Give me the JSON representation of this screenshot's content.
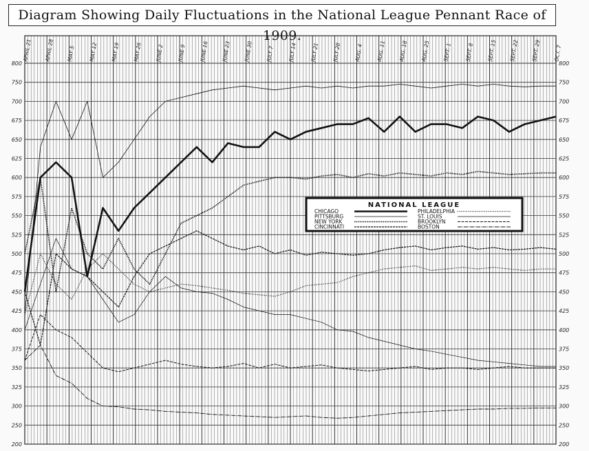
{
  "chart_data": {
    "type": "line",
    "title": "Diagram Showing Daily Fluctuations in the National League Pennant Race of 1909.",
    "date_labels": [
      "APRIL 21",
      "APRIL 28",
      "MAY 5",
      "MAY 12",
      "MAY 19",
      "MAY 26",
      "JUNE 2",
      "JUNE 9",
      "JUNE 16",
      "JUNE 23",
      "JUNE 30",
      "JULY 7",
      "JULY 14",
      "JULY 21",
      "JULY 28",
      "AUG. 4",
      "AUG. 11",
      "AUG. 18",
      "AUG. 25",
      "SEPT. 1",
      "SEPT. 8",
      "SEPT. 15",
      "SEPT. 22",
      "SEPT. 29",
      "OCT. 7"
    ],
    "left_ticks": [
      800,
      750,
      700,
      675,
      650,
      625,
      600,
      575,
      550,
      525,
      500,
      475,
      450,
      425,
      400,
      375,
      350,
      325,
      300,
      250,
      200
    ],
    "right_ticks": [
      800,
      750,
      700,
      675,
      650,
      625,
      600,
      575,
      550,
      525,
      500,
      475,
      450,
      425,
      400,
      375,
      350,
      325,
      300,
      250,
      200
    ],
    "legend_title": "NATIONAL LEAGUE",
    "series": [
      {
        "name": "CHICAGO",
        "style": "heavy",
        "values": [
          450,
          600,
          620,
          600,
          470,
          560,
          530,
          560,
          580,
          600,
          620,
          640,
          620,
          645,
          640,
          640,
          660,
          650,
          660,
          665,
          670,
          670,
          678,
          660,
          680,
          660,
          670,
          670,
          665,
          680,
          675,
          660,
          670,
          675,
          680
        ]
      },
      {
        "name": "PITTSBURG",
        "style": "thin",
        "values": [
          420,
          640,
          700,
          650,
          700,
          600,
          620,
          650,
          680,
          700,
          710,
          720,
          730,
          735,
          740,
          735,
          730,
          735,
          740,
          735,
          740,
          735,
          740,
          740,
          745,
          740,
          735,
          740,
          745,
          740,
          745,
          740,
          738,
          740,
          740
        ]
      },
      {
        "name": "NEW YORK",
        "style": "beaded",
        "values": [
          500,
          600,
          450,
          560,
          500,
          480,
          520,
          480,
          460,
          500,
          540,
          550,
          560,
          575,
          590,
          595,
          600,
          600,
          598,
          602,
          604,
          600,
          605,
          602,
          606,
          604,
          602,
          606,
          604,
          608,
          606,
          604,
          605,
          606,
          606
        ]
      },
      {
        "name": "CINCINNATI",
        "style": "hatched",
        "values": [
          450,
          380,
          500,
          480,
          470,
          450,
          430,
          470,
          500,
          510,
          520,
          530,
          520,
          510,
          505,
          510,
          500,
          505,
          498,
          502,
          500,
          498,
          500,
          505,
          508,
          510,
          505,
          508,
          510,
          506,
          508,
          505,
          506,
          508,
          506
        ]
      },
      {
        "name": "PHILADELPHIA",
        "style": "dotted",
        "values": [
          420,
          500,
          460,
          440,
          480,
          500,
          480,
          460,
          450,
          455,
          460,
          458,
          455,
          452,
          448,
          446,
          444,
          450,
          458,
          460,
          462,
          470,
          475,
          480,
          482,
          484,
          478,
          480,
          482,
          480,
          482,
          480,
          478,
          480,
          480
        ]
      },
      {
        "name": "ST. LOUIS",
        "style": "fine",
        "values": [
          400,
          460,
          520,
          480,
          470,
          440,
          410,
          420,
          450,
          470,
          455,
          450,
          448,
          440,
          430,
          425,
          420,
          420,
          415,
          410,
          400,
          398,
          390,
          385,
          380,
          375,
          372,
          368,
          364,
          360,
          358,
          356,
          354,
          352,
          352
        ]
      },
      {
        "name": "BROOKLYN",
        "style": "ticked",
        "values": [
          360,
          420,
          400,
          390,
          370,
          350,
          345,
          350,
          355,
          360,
          355,
          352,
          350,
          352,
          356,
          350,
          355,
          350,
          352,
          354,
          350,
          348,
          346,
          348,
          350,
          352,
          348,
          350,
          350,
          348,
          350,
          352,
          350,
          350,
          350
        ]
      },
      {
        "name": "BOSTON",
        "style": "irregular",
        "values": [
          360,
          380,
          340,
          330,
          310,
          300,
          298,
          292,
          290,
          286,
          284,
          282,
          278,
          276,
          274,
          272,
          270,
          272,
          274,
          270,
          268,
          270,
          274,
          278,
          282,
          284,
          286,
          288,
          290,
          292,
          292,
          294,
          294,
          295,
          295
        ]
      }
    ],
    "colors": {
      "heavy": "#111111",
      "line": "#2a2a2a",
      "grid": "#3a3a3a",
      "paper": "#fafafa"
    }
  }
}
